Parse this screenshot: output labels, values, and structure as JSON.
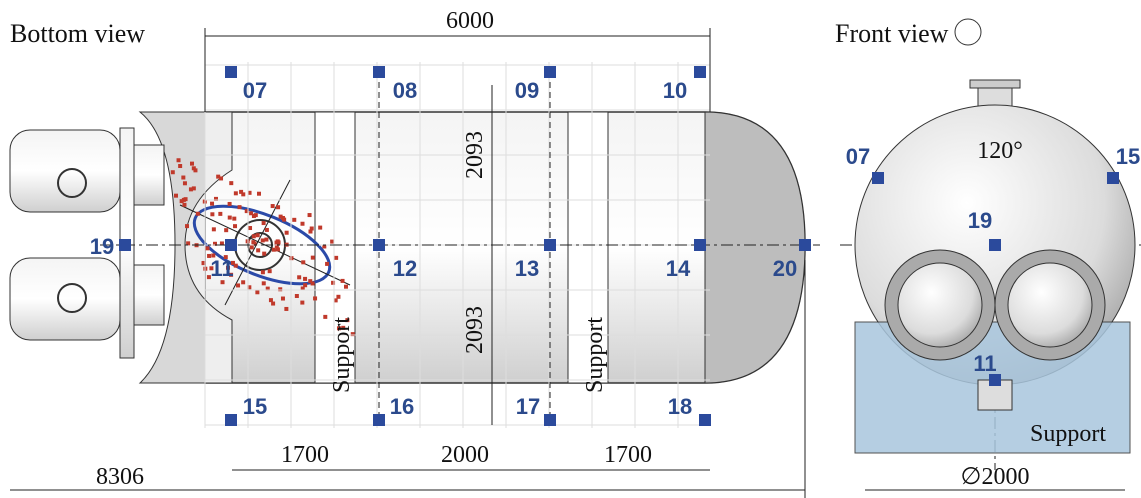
{
  "bottom_view": {
    "title": "Bottom view",
    "dimensions": {
      "overall_width": "6000",
      "upper_half": "2093",
      "lower_half": "2093",
      "left_span": "1700",
      "middle_span": "2000",
      "right_span": "1700",
      "total_length": "8306"
    },
    "support_labels": [
      "Support",
      "Support"
    ],
    "points": [
      "07",
      "08",
      "09",
      "10",
      "19",
      "11",
      "12",
      "13",
      "14",
      "20",
      "15",
      "16",
      "17",
      "18"
    ]
  },
  "front_view": {
    "title": "Front view",
    "angle": "120°",
    "diameter": "∅2000",
    "support_label": "Support",
    "points": [
      "07",
      "15",
      "19",
      "11"
    ]
  }
}
